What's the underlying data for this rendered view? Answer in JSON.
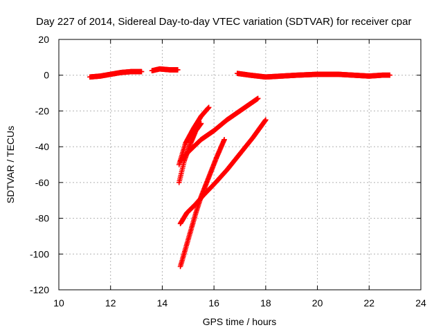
{
  "chart_data": {
    "type": "scatter",
    "title": "Day 227 of 2014, Sidereal Day-to-day VTEC variation (SDTVAR) for receiver cpar",
    "xlabel": "GPS time / hours",
    "ylabel": "SDTVAR / TECUs",
    "xlim": [
      10,
      24
    ],
    "ylim": [
      -120,
      20
    ],
    "xticks": [
      "10",
      "12",
      "14",
      "16",
      "18",
      "20",
      "22",
      "24"
    ],
    "yticks": [
      "20",
      "0",
      "-20",
      "-40",
      "-60",
      "-80",
      "-100",
      "-120"
    ],
    "grid": true,
    "marker": "plus",
    "series": [
      {
        "color": "#ff0000",
        "tracks": [
          [
            [
              11.2,
              -1
            ],
            [
              11.6,
              -0.5
            ],
            [
              12.0,
              0.5
            ],
            [
              12.4,
              1.5
            ],
            [
              12.8,
              2
            ],
            [
              13.2,
              2
            ]
          ],
          [
            [
              13.6,
              2.5
            ],
            [
              13.9,
              3.5
            ],
            [
              14.3,
              3
            ],
            [
              14.6,
              3
            ]
          ],
          [
            [
              16.9,
              1
            ],
            [
              17.4,
              0
            ],
            [
              18.0,
              -1
            ],
            [
              18.6,
              -0.5
            ],
            [
              19.2,
              0
            ],
            [
              20.0,
              0.5
            ],
            [
              20.8,
              0.5
            ],
            [
              21.4,
              0
            ],
            [
              22.0,
              -0.5
            ],
            [
              22.5,
              0
            ],
            [
              22.8,
              0
            ]
          ],
          [
            [
              14.65,
              -50
            ],
            [
              14.9,
              -38
            ],
            [
              15.2,
              -30
            ],
            [
              15.5,
              -23
            ],
            [
              15.8,
              -18
            ]
          ],
          [
            [
              14.65,
              -60
            ],
            [
              14.85,
              -48
            ],
            [
              15.1,
              -38
            ],
            [
              15.3,
              -31
            ],
            [
              15.5,
              -27
            ]
          ],
          [
            [
              14.7,
              -48
            ],
            [
              15.0,
              -43
            ],
            [
              15.5,
              -36
            ],
            [
              16.0,
              -31
            ],
            [
              16.5,
              -25
            ],
            [
              17.0,
              -20
            ],
            [
              17.4,
              -16
            ],
            [
              17.7,
              -13
            ]
          ],
          [
            [
              14.7,
              -107
            ],
            [
              14.9,
              -97
            ],
            [
              15.1,
              -87
            ],
            [
              15.3,
              -77
            ],
            [
              15.5,
              -68
            ],
            [
              15.8,
              -57
            ],
            [
              16.1,
              -46
            ],
            [
              16.4,
              -36
            ]
          ],
          [
            [
              14.7,
              -83
            ],
            [
              14.95,
              -77
            ],
            [
              15.3,
              -72
            ],
            [
              15.6,
              -67
            ],
            [
              16.0,
              -61
            ],
            [
              16.5,
              -53
            ],
            [
              17.0,
              -44
            ],
            [
              17.5,
              -35
            ],
            [
              18.0,
              -25
            ]
          ]
        ]
      }
    ]
  }
}
